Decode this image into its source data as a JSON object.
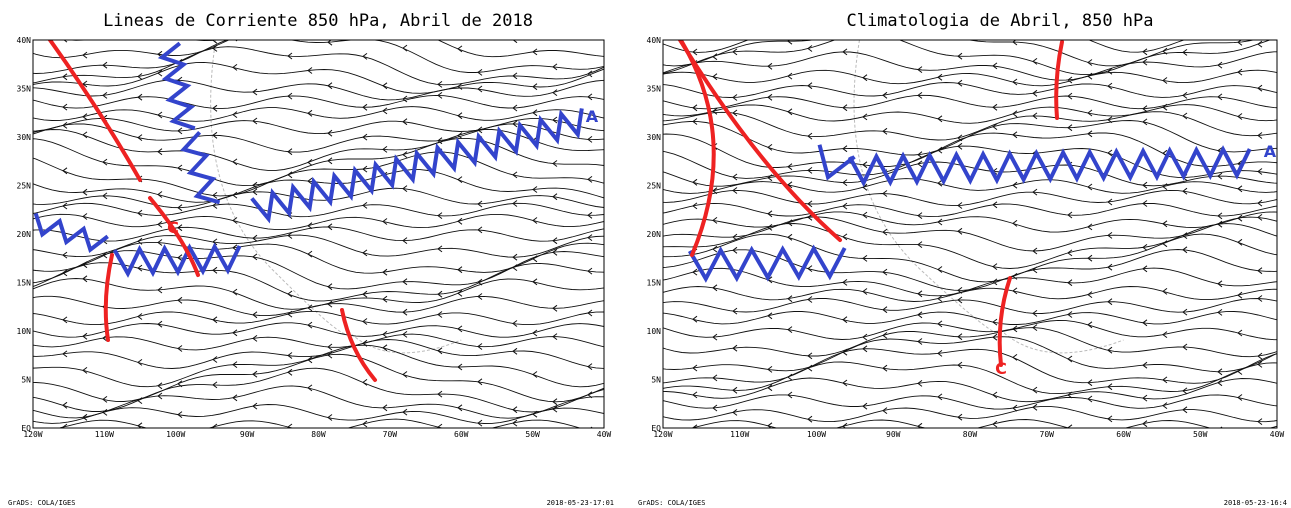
{
  "panels": [
    {
      "title": "Lineas de Corriente 850 hPa, Abril de 2018",
      "lat_labels": [
        "40N",
        "35N",
        "30N",
        "25N",
        "20N",
        "15N",
        "10N",
        "5N",
        "EQ"
      ],
      "lon_labels": [
        "120W",
        "110W",
        "100W",
        "90W",
        "80W",
        "70W",
        "60W",
        "50W",
        "40W"
      ],
      "annotations": [
        "C",
        "A"
      ],
      "footer_left": "GrADS: COLA/IGES",
      "footer_right": "2018-05-23-17:01"
    },
    {
      "title": "Climatologia de Abril, 850 hPa",
      "lat_labels": [
        "40N",
        "35N",
        "30N",
        "25N",
        "20N",
        "15N",
        "10N",
        "5N",
        "EQ"
      ],
      "lon_labels": [
        "120W",
        "110W",
        "100W",
        "90W",
        "80W",
        "70W",
        "60W",
        "50W",
        "40W"
      ],
      "annotations": [
        "A",
        "C"
      ],
      "footer_left": "GrADS: COLA/IGES",
      "footer_right": "2018-05-23-16:4"
    }
  ]
}
